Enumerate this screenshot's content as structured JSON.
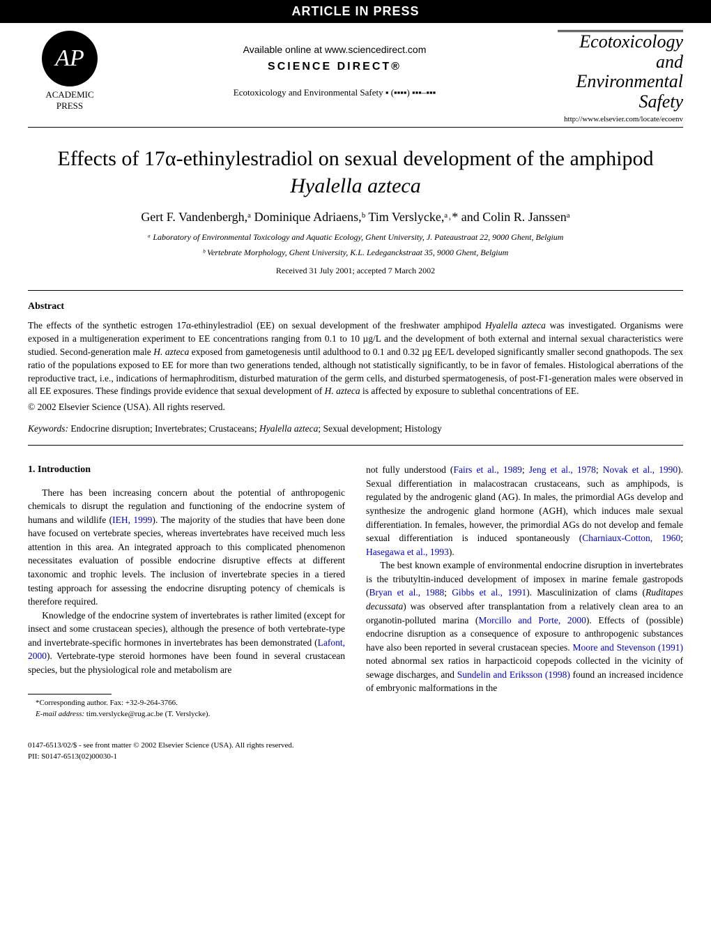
{
  "topbar": "ARTICLE IN PRESS",
  "header": {
    "logo_text": "AP",
    "logo_press1": "ACADEMIC",
    "logo_press2": "PRESS",
    "available_online": "Available online at www.sciencedirect.com",
    "science_direct": "SCIENCE DIRECT®",
    "journal_ref": "Ecotoxicology and Environmental Safety ▪ (▪▪▪▪) ▪▪▪–▪▪▪",
    "journal_name1": "Ecotoxicology",
    "journal_name2": "and",
    "journal_name3": "Environmental",
    "journal_name4": "Safety",
    "journal_url": "http://www.elsevier.com/locate/ecoenv"
  },
  "title": "Effects of 17α-ethinylestradiol on sexual development of the amphipod Hyalella azteca",
  "authors": "Gert F. Vandenbergh,ᵃ Dominique Adriaens,ᵇ Tim Verslycke,ᵃ˒* and Colin R. Janssenᵃ",
  "affiliations": {
    "a": "ᵃ Laboratory of Environmental Toxicology and Aquatic Ecology, Ghent University, J. Pateaustraat 22, 9000 Ghent, Belgium",
    "b": "ᵇ Vertebrate Morphology, Ghent University, K.L. Ledeganckstraat 35, 9000 Ghent, Belgium"
  },
  "received": "Received 31 July 2001; accepted 7 March 2002",
  "abstract": {
    "heading": "Abstract",
    "text": "The effects of the synthetic estrogen 17α-ethinylestradiol (EE) on sexual development of the freshwater amphipod Hyalella azteca was investigated. Organisms were exposed in a multigeneration experiment to EE concentrations ranging from 0.1 to 10 µg/L and the development of both external and internal sexual characteristics were studied. Second-generation male H. azteca exposed from gametogenesis until adulthood to 0.1 and 0.32 µg EE/L developed significantly smaller second gnathopods. The sex ratio of the populations exposed to EE for more than two generations tended, although not statistically significantly, to be in favor of females. Histological aberrations of the reproductive tract, i.e., indications of hermaphroditism, disturbed maturation of the germ cells, and disturbed spermatogenesis, of post-F1-generation males were observed in all EE exposures. These findings provide evidence that sexual development of H. azteca is affected by exposure to sublethal concentrations of EE.",
    "copyright": "© 2002 Elsevier Science (USA). All rights reserved."
  },
  "keywords": {
    "label": "Keywords:",
    "text": "Endocrine disruption; Invertebrates; Crustaceans; Hyalella azteca; Sexual development; Histology"
  },
  "intro": {
    "heading": "1. Introduction",
    "p1": "There has been increasing concern about the potential of anthropogenic chemicals to disrupt the regulation and functioning of the endocrine system of humans and wildlife (IEH, 1999). The majority of the studies that have been done have focused on vertebrate species, whereas invertebrates have received much less attention in this area. An integrated approach to this complicated phenomenon necessitates evaluation of possible endocrine disruptive effects at different taxonomic and trophic levels. The inclusion of invertebrate species in a tiered testing approach for assessing the endocrine disrupting potency of chemicals is therefore required.",
    "p2": "Knowledge of the endocrine system of invertebrates is rather limited (except for insect and some crustacean species), although the presence of both vertebrate-type and invertebrate-specific hormones in invertebrates has been demonstrated (Lafont, 2000). Vertebrate-type steroid hormones have been found in several crustacean species, but the physiological role and metabolism are",
    "p3": "not fully understood (Fairs et al., 1989; Jeng et al., 1978; Novak et al., 1990). Sexual differentiation in malacostracan crustaceans, such as amphipods, is regulated by the androgenic gland (AG). In males, the primordial AGs develop and synthesize the androgenic gland hormone (AGH), which induces male sexual differentiation. In females, however, the primordial AGs do not develop and female sexual differentiation is induced spontaneously (Charniaux-Cotton, 1960; Hasegawa et al., 1993).",
    "p4": "The best known example of environmental endocrine disruption in invertebrates is the tributyltin-induced development of imposex in marine female gastropods (Bryan et al., 1988; Gibbs et al., 1991). Masculinization of clams (Ruditapes decussata) was observed after transplantation from a relatively clean area to an organotin-polluted marina (Morcillo and Porte, 2000). Effects of (possible) endocrine disruption as a consequence of exposure to anthropogenic substances have also been reported in several crustacean species. Moore and Stevenson (1991) noted abnormal sex ratios in harpacticoid copepods collected in the vicinity of sewage discharges, and Sundelin and Eriksson (1998) found an increased incidence of embryonic malformations in the"
  },
  "footnote": {
    "corr": "*Corresponding author. Fax: +32-9-264-3766.",
    "email_label": "E-mail address:",
    "email": "tim.verslycke@rug.ac.be (T. Verslycke)."
  },
  "footer": {
    "line1": "0147-6513/02/$ - see front matter © 2002 Elsevier Science (USA). All rights reserved.",
    "line2": "PII: S0147-6513(02)00030-1"
  }
}
